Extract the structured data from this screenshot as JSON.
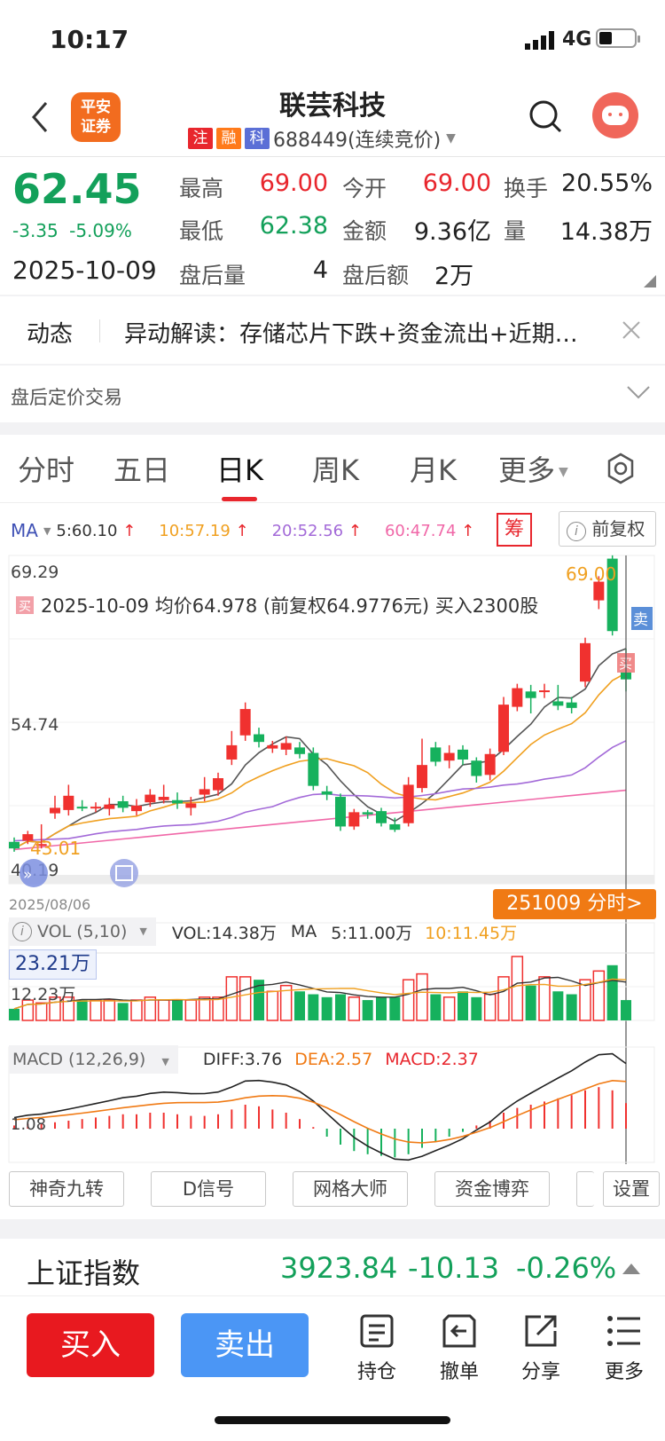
{
  "status": {
    "time": "10:17",
    "network": "4G"
  },
  "header": {
    "logo_line1": "平安",
    "logo_line2": "证券",
    "title": "联芸科技",
    "tags": [
      {
        "text": "注",
        "color": "#e8262d"
      },
      {
        "text": "融",
        "color": "#ff7a1a"
      },
      {
        "text": "科",
        "color": "#5b6fd6"
      }
    ],
    "code": "688449(连续竞价)"
  },
  "quote": {
    "price": "62.45",
    "change": "-3.35",
    "pct": "-5.09%",
    "date": "2025-10-09",
    "high_label": "最高",
    "high": "69.00",
    "open_label": "今开",
    "open": "69.00",
    "turnover_label": "换手",
    "turnover": "20.55%",
    "low_label": "最低",
    "low": "62.38",
    "amount_label": "金额",
    "amount": "9.36亿",
    "volume_label": "量",
    "volume": "14.38万",
    "after_vol_label": "盘后量",
    "after_vol": "4",
    "after_amt_label": "盘后额",
    "after_amt": "2万"
  },
  "news": {
    "label": "动态",
    "text": "异动解读：存储芯片下跌+资金流出+近期…"
  },
  "after_hours": {
    "label": "盘后定价交易"
  },
  "tabs": [
    "分时",
    "五日",
    "日K",
    "周K",
    "月K",
    "更多"
  ],
  "active_tab": "日K",
  "ma": {
    "label": "MA",
    "items": [
      {
        "text": "5:60.10",
        "color": "#333333"
      },
      {
        "text": "10:57.19",
        "color": "#f0a020"
      },
      {
        "text": "20:52.56",
        "color": "#a36ad8"
      },
      {
        "text": "60:47.74",
        "color": "#f068a8"
      }
    ],
    "chip": "筹",
    "adjust": "前复权"
  },
  "kline": {
    "top_price": "69.29",
    "mid_price": "54.74",
    "bottom_price": "40.19",
    "high_marker": "69.00",
    "low_marker": "43.01",
    "trade_note": "2025-10-09 均价64.978 (前复权64.9776元) 买入2300股",
    "buy_tag": "买",
    "sell_tag": "卖",
    "start_date": "2025/08/06",
    "fenshi_button": "251009 分时>"
  },
  "vol": {
    "label": "VOL (5,10)",
    "value": "VOL:14.38万",
    "ma_label": "MA",
    "ma5": "5:11.00万",
    "ma10": "10:11.45万",
    "top": "23.21万",
    "mid": "12.23万"
  },
  "macd": {
    "label": "MACD (12,26,9)",
    "diff": "DIFF:3.76",
    "dea": "DEA:2.57",
    "macd": "MACD:2.37",
    "axis": "1.08"
  },
  "tools": [
    "神奇九转",
    "D信号",
    "网格大师",
    "资金博弈",
    "设置"
  ],
  "index": {
    "name": "上证指数",
    "value": "3923.84",
    "change": "-10.13",
    "pct": "-0.26%"
  },
  "bottom": {
    "buy": "买入",
    "sell": "卖出",
    "nav": [
      "持仓",
      "撤单",
      "分享",
      "更多"
    ]
  },
  "chart_data": {
    "type": "candlestick",
    "price_axis": [
      40.19,
      54.74,
      69.29
    ],
    "candles": [
      {
        "o": 43.2,
        "c": 42.6,
        "h": 43.6,
        "l": 42.3
      },
      {
        "o": 43.3,
        "c": 43.9,
        "h": 44.2,
        "l": 43.0
      },
      {
        "o": 43.0,
        "c": 43.0,
        "h": 44.8,
        "l": 42.6
      },
      {
        "o": 45.8,
        "c": 46.3,
        "h": 47.4,
        "l": 45.3
      },
      {
        "o": 46.1,
        "c": 47.4,
        "h": 48.4,
        "l": 45.6
      },
      {
        "o": 46.4,
        "c": 46.3,
        "h": 47.0,
        "l": 46.0
      },
      {
        "o": 46.3,
        "c": 46.4,
        "h": 46.8,
        "l": 45.9
      },
      {
        "o": 46.2,
        "c": 46.6,
        "h": 47.2,
        "l": 45.6
      },
      {
        "o": 46.9,
        "c": 46.3,
        "h": 47.4,
        "l": 45.9
      },
      {
        "o": 46.0,
        "c": 46.5,
        "h": 47.1,
        "l": 45.6
      },
      {
        "o": 46.8,
        "c": 47.5,
        "h": 48.0,
        "l": 46.4
      },
      {
        "o": 47.0,
        "c": 47.3,
        "h": 48.4,
        "l": 46.7
      },
      {
        "o": 47.0,
        "c": 46.7,
        "h": 47.7,
        "l": 46.2
      },
      {
        "o": 46.3,
        "c": 46.7,
        "h": 47.3,
        "l": 45.6
      },
      {
        "o": 47.5,
        "c": 48.0,
        "h": 49.1,
        "l": 46.9
      },
      {
        "o": 47.9,
        "c": 49.0,
        "h": 49.5,
        "l": 47.4
      },
      {
        "o": 50.7,
        "c": 52.0,
        "h": 53.3,
        "l": 50.2
      },
      {
        "o": 52.9,
        "c": 55.3,
        "h": 55.9,
        "l": 52.4
      },
      {
        "o": 53.0,
        "c": 52.3,
        "h": 53.6,
        "l": 51.8
      },
      {
        "o": 51.7,
        "c": 52.0,
        "h": 52.4,
        "l": 51.3
      },
      {
        "o": 51.6,
        "c": 52.2,
        "h": 52.8,
        "l": 51.1
      },
      {
        "o": 51.8,
        "c": 51.2,
        "h": 52.3,
        "l": 50.8
      },
      {
        "o": 51.3,
        "c": 48.3,
        "h": 51.8,
        "l": 47.9
      },
      {
        "o": 47.8,
        "c": 47.5,
        "h": 48.3,
        "l": 47.0
      },
      {
        "o": 47.3,
        "c": 44.6,
        "h": 47.6,
        "l": 44.2
      },
      {
        "o": 44.6,
        "c": 45.9,
        "h": 46.2,
        "l": 44.3
      },
      {
        "o": 45.9,
        "c": 45.7,
        "h": 46.1,
        "l": 45.3
      },
      {
        "o": 46.0,
        "c": 44.9,
        "h": 46.3,
        "l": 44.6
      },
      {
        "o": 44.8,
        "c": 44.3,
        "h": 45.4,
        "l": 44.1
      },
      {
        "o": 44.9,
        "c": 48.4,
        "h": 49.1,
        "l": 44.6
      },
      {
        "o": 48.1,
        "c": 50.2,
        "h": 52.6,
        "l": 47.7
      },
      {
        "o": 51.8,
        "c": 50.5,
        "h": 52.3,
        "l": 50.1
      },
      {
        "o": 50.6,
        "c": 51.3,
        "h": 52.0,
        "l": 49.9
      },
      {
        "o": 51.6,
        "c": 50.7,
        "h": 52.0,
        "l": 50.2
      },
      {
        "o": 50.6,
        "c": 49.2,
        "h": 50.9,
        "l": 48.6
      },
      {
        "o": 49.3,
        "c": 51.2,
        "h": 51.7,
        "l": 48.8
      },
      {
        "o": 51.4,
        "c": 55.7,
        "h": 56.4,
        "l": 51.1
      },
      {
        "o": 55.5,
        "c": 57.2,
        "h": 57.6,
        "l": 55.1
      },
      {
        "o": 56.9,
        "c": 56.3,
        "h": 57.5,
        "l": 54.9
      },
      {
        "o": 56.9,
        "c": 57.0,
        "h": 57.6,
        "l": 56.3
      },
      {
        "o": 56.0,
        "c": 55.6,
        "h": 57.5,
        "l": 55.2
      },
      {
        "o": 55.9,
        "c": 55.4,
        "h": 56.4,
        "l": 54.9
      },
      {
        "o": 57.8,
        "c": 61.3,
        "h": 61.8,
        "l": 57.3
      },
      {
        "o": 65.2,
        "c": 66.9,
        "h": 67.4,
        "l": 64.4
      },
      {
        "o": 69.0,
        "c": 62.4,
        "h": 69.3,
        "l": 62.0
      },
      {
        "o": 60.3,
        "c": 58.0,
        "h": 60.8,
        "l": 56.9
      }
    ],
    "vol_axis": {
      "top": "23.21万",
      "mid": "12.23万"
    },
    "volumes": [
      4,
      7,
      6,
      8,
      8,
      7,
      7,
      7,
      6,
      7,
      8,
      7,
      7,
      7,
      8,
      8,
      15,
      15,
      14,
      10,
      12,
      10,
      9,
      8,
      9,
      8,
      7,
      8,
      8,
      14,
      16,
      9,
      8,
      10,
      8,
      9,
      15,
      22,
      12,
      15,
      10,
      9,
      14,
      17,
      19,
      7
    ],
    "macd_hist": [
      0.2,
      0.3,
      0.3,
      0.4,
      0.5,
      0.6,
      0.7,
      0.8,
      0.9,
      0.9,
      1.0,
      1.0,
      0.9,
      0.8,
      0.8,
      0.9,
      1.2,
      1.5,
      1.4,
      1.2,
      1.0,
      0.6,
      0.1,
      -0.5,
      -1.0,
      -1.4,
      -1.6,
      -1.7,
      -1.8,
      -1.6,
      -1.2,
      -0.8,
      -0.5,
      -0.2,
      0.2,
      0.5,
      1.0,
      1.3,
      1.5,
      1.7,
      1.9,
      2.1,
      2.4,
      2.6,
      2.4,
      1.6
    ]
  }
}
